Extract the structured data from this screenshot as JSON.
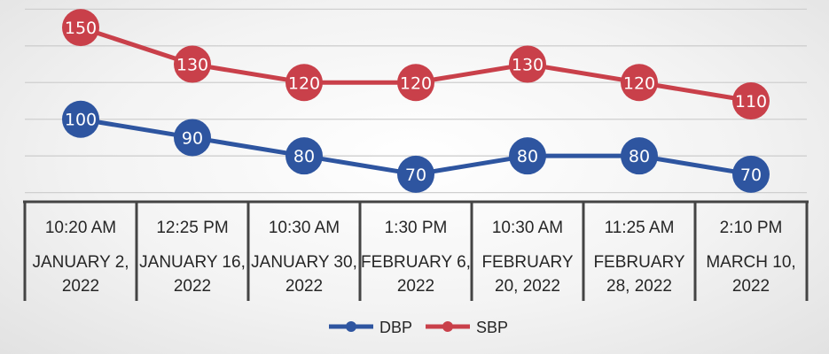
{
  "chart_data": {
    "type": "line",
    "categories": [
      [
        "10:20 AM",
        "JANUARY 2,",
        "2022"
      ],
      [
        "12:25 PM",
        "JANUARY 16,",
        "2022"
      ],
      [
        "10:30 AM",
        "JANUARY 30,",
        "2022"
      ],
      [
        "1:30 PM",
        "FEBRUARY 6,",
        "2022"
      ],
      [
        "10:30 AM",
        "FEBRUARY",
        "20, 2022"
      ],
      [
        "11:25 AM",
        "FEBRUARY",
        "28, 2022"
      ],
      [
        "2:10 PM",
        "MARCH 10,",
        "2022"
      ]
    ],
    "series": [
      {
        "name": "DBP",
        "color": "#2E55A0",
        "values": [
          100,
          90,
          80,
          70,
          80,
          80,
          70
        ],
        "labels": [
          "100",
          "90",
          "80",
          "70",
          "80",
          "80",
          "70"
        ]
      },
      {
        "name": "SBP",
        "color": "#C9404A",
        "values": [
          150,
          130,
          120,
          120,
          130,
          120,
          110
        ],
        "labels": [
          "150",
          "130",
          "120",
          "120",
          "130",
          "120",
          "110"
        ]
      }
    ],
    "ylim": [
      55,
      165
    ],
    "grid": true,
    "legend_position": "bottom"
  }
}
